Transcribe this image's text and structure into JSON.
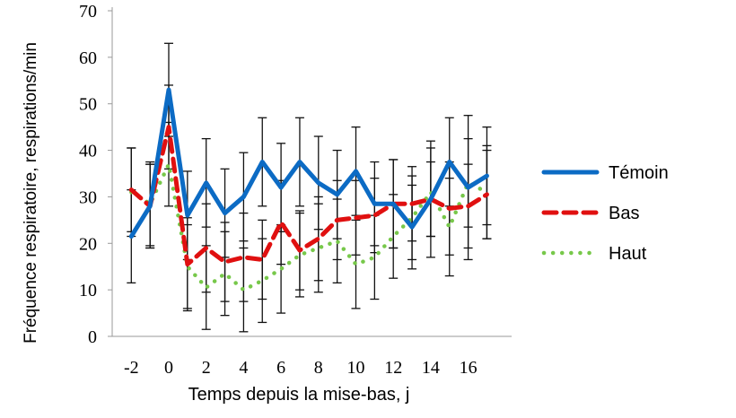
{
  "chart_data": {
    "type": "line",
    "title": "",
    "xlabel": "Temps depuis la mise-bas, j",
    "ylabel": "Fréquence respiratoire, respirations/min",
    "xlim": [
      -3,
      17.5
    ],
    "ylim": [
      0,
      70
    ],
    "yticks": [
      0,
      10,
      20,
      30,
      40,
      50,
      60,
      70
    ],
    "xticks": [
      -2,
      0,
      2,
      4,
      6,
      8,
      10,
      12,
      14,
      16
    ],
    "grid": false,
    "legend_position": "right",
    "x": [
      -2,
      -1,
      0,
      1,
      2,
      3,
      4,
      5,
      6,
      7,
      8,
      9,
      10,
      11,
      12,
      13,
      14,
      15,
      16,
      17
    ],
    "series": [
      {
        "name": "Témoin",
        "color": "#0c6bc4",
        "style": "solid",
        "values": [
          21.5,
          28,
          53,
          26,
          33,
          26.5,
          30,
          37.5,
          32,
          37.5,
          33,
          30.5,
          35.5,
          28.5,
          28.5,
          23.5,
          29.5,
          37.5,
          32,
          34.5
        ],
        "error": [
          10,
          9,
          10,
          9.5,
          9.5,
          9.5,
          9.5,
          9.5,
          9.5,
          9.5,
          10,
          9.5,
          9.5,
          9,
          9.5,
          9,
          12.5,
          9.5,
          15.5,
          10.5
        ]
      },
      {
        "name": "Bas",
        "color": "#e01010",
        "style": "dashed",
        "values": [
          31.5,
          28,
          45,
          15.5,
          19,
          16,
          17,
          16.5,
          24.5,
          18.5,
          21,
          25,
          25.5,
          26,
          28.5,
          28.5,
          29.5,
          27.5,
          28,
          30.5
        ],
        "error": [
          9,
          9,
          9,
          10,
          9.5,
          8.5,
          9.5,
          8.5,
          9,
          8.5,
          9,
          8.5,
          8,
          8,
          9.5,
          8,
          8,
          10,
          9,
          9.5
        ]
      },
      {
        "name": "Haut",
        "color": "#77c84a",
        "style": "dotted",
        "values": [
          31,
          28.5,
          37,
          15,
          10.5,
          13.5,
          10,
          12,
          14.5,
          17.5,
          19,
          20.5,
          15.5,
          17,
          21.5,
          25.5,
          31,
          23.5,
          33,
          31
        ],
        "error": [
          9.5,
          9,
          9,
          9,
          9,
          9,
          9,
          9,
          9.5,
          9,
          9.5,
          9,
          9.5,
          9,
          9,
          9,
          9.5,
          10.5,
          9.5,
          10
        ]
      }
    ]
  }
}
